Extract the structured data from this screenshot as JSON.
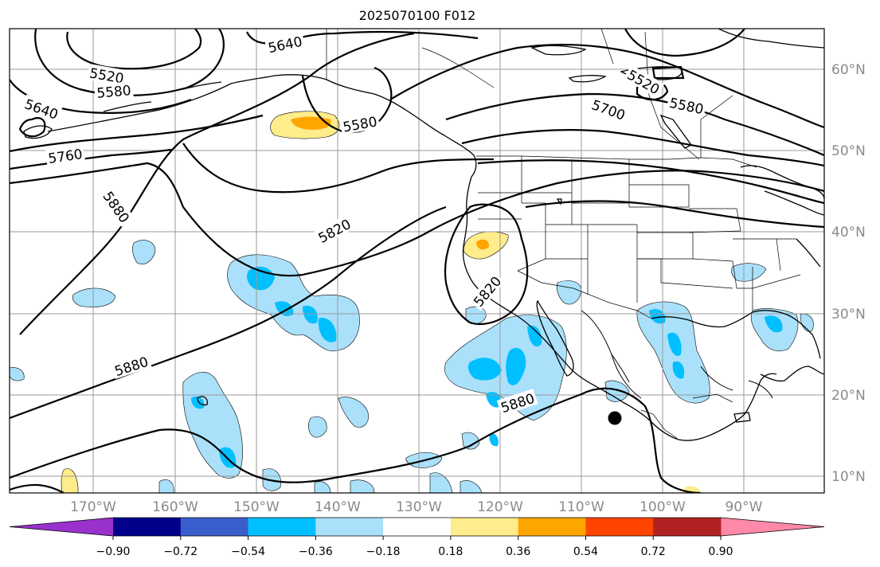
{
  "title": "2025070100 F012",
  "map": {
    "lat_labels": [
      "60°N",
      "50°N",
      "40°N",
      "30°N",
      "20°N",
      "10°N"
    ],
    "lon_labels": [
      "170°W",
      "160°W",
      "150°W",
      "140°W",
      "130°W",
      "120°W",
      "110°W",
      "100°W",
      "90°W"
    ],
    "contour_labels": [
      {
        "text": "5640",
        "angle": -12
      },
      {
        "text": "5520",
        "angle": 10
      },
      {
        "text": "5580",
        "angle": -5
      },
      {
        "text": "5640",
        "angle": 20
      },
      {
        "text": "5760",
        "angle": -8
      },
      {
        "text": "5880",
        "angle": 55
      },
      {
        "text": "5580",
        "angle": -10
      },
      {
        "text": "5820",
        "angle": -28
      },
      {
        "text": "5820",
        "angle": -50
      },
      {
        "text": "5880",
        "angle": -18
      },
      {
        "text": "5880",
        "angle": -18
      },
      {
        "text": "5700",
        "angle": 20
      },
      {
        "text": "5520",
        "angle": 30
      },
      {
        "text": "5580",
        "angle": 12
      }
    ],
    "marker": "storm-center-dot"
  },
  "colorbar": {
    "colors": [
      "#9932cc",
      "#00008b",
      "#3a5fcd",
      "#00bfff",
      "#aae0fa",
      "#ffffff",
      "#ffec8b",
      "#ffa500",
      "#ff4500",
      "#b22222",
      "#ff89a9"
    ],
    "labels": [
      "−0.90",
      "−0.72",
      "−0.54",
      "−0.36",
      "−0.18",
      "0.18",
      "0.36",
      "0.54",
      "0.72",
      "0.90"
    ]
  }
}
